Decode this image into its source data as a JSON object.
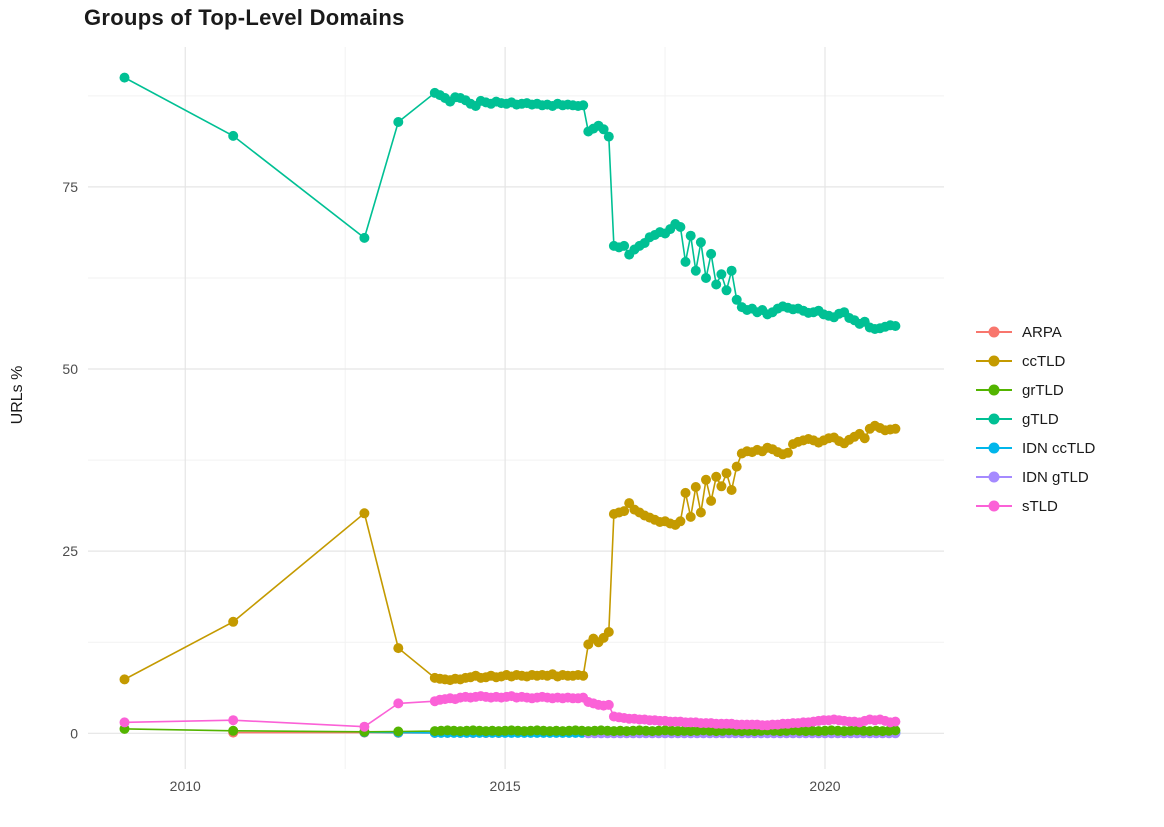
{
  "title": "Groups of Top-Level Domains",
  "chart_data": {
    "type": "scatter",
    "title": "Groups of Top-Level Domains",
    "xlabel": "",
    "ylabel": "URLs %",
    "xlim": [
      2008.48,
      2021.86
    ],
    "ylim": [
      -4.9,
      94.2
    ],
    "grid": true,
    "legend_position": "right",
    "x_ticks": [
      {
        "label": "2010",
        "value": 2010
      },
      {
        "label": "2015",
        "value": 2015
      },
      {
        "label": "2020",
        "value": 2020
      }
    ],
    "y_ticks": [
      {
        "label": "0",
        "value": 0
      },
      {
        "label": "25",
        "value": 25
      },
      {
        "label": "50",
        "value": 50
      },
      {
        "label": "75",
        "value": 75
      }
    ],
    "x_minor": [
      2012.5,
      2017.5
    ],
    "y_minor": [
      12.5,
      37.5,
      62.5,
      87.5
    ],
    "series": [
      {
        "name": "ARPA",
        "color": "#F8766D",
        "points": [
          [
            2010.75,
            0.1
          ],
          [
            2012.8,
            0.1
          ],
          [
            2013.33,
            0.06
          ],
          [
            2013.9,
            0.05
          ],
          [
            2014.1,
            0.05
          ],
          [
            2014.3,
            0.05
          ],
          [
            2014.5,
            0.04
          ],
          [
            2014.7,
            0.04
          ],
          [
            2014.9,
            0.04
          ]
        ]
      },
      {
        "name": "ccTLD",
        "color": "#C49A00",
        "points": [
          [
            2009.05,
            7.4
          ],
          [
            2010.75,
            15.3
          ],
          [
            2012.8,
            30.2
          ],
          [
            2013.33,
            11.7
          ]
        ],
        "dense": {
          "x_start": 2013.9,
          "x_step": 0.08,
          "y": [
            7.6,
            7.5,
            7.4,
            7.3,
            7.5,
            7.4,
            7.6,
            7.7,
            7.9,
            7.6,
            7.7,
            7.9,
            7.7,
            7.8,
            8.0,
            7.8,
            8.0,
            7.9,
            7.8,
            8.0,
            7.9,
            8.0,
            7.9,
            8.1,
            7.8,
            8.0,
            7.9,
            7.9,
            8.0,
            7.9,
            12.2,
            13.0,
            12.5,
            13.1,
            13.9,
            30.1,
            30.3,
            30.5,
            31.6,
            30.7,
            30.3,
            29.9,
            29.6,
            29.3,
            29.0,
            29.1,
            28.8,
            28.6,
            29.1,
            33.0,
            29.7,
            33.8,
            30.3,
            34.8,
            31.9,
            35.2,
            33.9,
            35.7,
            33.4,
            36.6,
            38.4,
            38.7,
            38.6,
            38.9,
            38.7,
            39.2,
            39.0,
            38.6,
            38.3,
            38.5,
            39.7,
            40.0,
            40.2,
            40.4,
            40.2,
            39.9,
            40.2,
            40.5,
            40.6,
            40.1,
            39.8,
            40.3,
            40.7,
            41.1,
            40.5,
            41.8,
            42.2,
            41.9,
            41.6,
            41.7,
            41.8
          ]
        }
      },
      {
        "name": "grTLD",
        "color": "#53B400",
        "points": [
          [
            2009.05,
            0.6
          ],
          [
            2010.75,
            0.35
          ],
          [
            2012.8,
            0.2
          ],
          [
            2013.33,
            0.25
          ]
        ],
        "dense": {
          "x_start": 2013.9,
          "x_step": 0.1,
          "y": [
            0.3,
            0.35,
            0.4,
            0.35,
            0.3,
            0.35,
            0.4,
            0.35,
            0.3,
            0.35,
            0.3,
            0.35,
            0.4,
            0.35,
            0.3,
            0.35,
            0.4,
            0.35,
            0.3,
            0.35,
            0.3,
            0.35,
            0.4,
            0.35,
            0.3,
            0.35,
            0.4,
            0.35,
            0.3,
            0.35,
            0.3,
            0.35,
            0.4,
            0.35,
            0.3,
            0.35,
            0.4,
            0.35,
            0.3,
            0.35,
            0.3,
            0.35,
            0.4,
            0.35,
            0.3,
            0.35,
            0.4,
            0.35,
            0.3,
            0.35,
            0.3,
            0.35,
            0.4,
            0.35,
            0.3,
            0.35,
            0.4,
            0.35,
            0.3,
            0.35,
            0.3,
            0.35,
            0.4,
            0.35,
            0.3,
            0.35,
            0.4,
            0.35,
            0.3,
            0.35,
            0.3,
            0.35,
            0.4
          ]
        }
      },
      {
        "name": "gTLD",
        "color": "#00C094",
        "points": [
          [
            2009.05,
            90.0
          ],
          [
            2010.75,
            82.0
          ],
          [
            2012.8,
            68.0
          ],
          [
            2013.33,
            83.9
          ]
        ],
        "dense": {
          "x_start": 2013.9,
          "x_step": 0.08,
          "y": [
            87.9,
            87.6,
            87.2,
            86.7,
            87.3,
            87.2,
            86.9,
            86.4,
            86.1,
            86.8,
            86.6,
            86.4,
            86.7,
            86.5,
            86.4,
            86.6,
            86.3,
            86.4,
            86.5,
            86.3,
            86.4,
            86.2,
            86.3,
            86.1,
            86.4,
            86.2,
            86.3,
            86.2,
            86.1,
            86.2,
            82.6,
            83.0,
            83.4,
            82.9,
            81.9,
            66.9,
            66.7,
            66.9,
            65.7,
            66.4,
            66.9,
            67.3,
            68.1,
            68.4,
            68.8,
            68.6,
            69.2,
            69.9,
            69.5,
            64.7,
            68.3,
            63.5,
            67.4,
            62.5,
            65.8,
            61.6,
            63.0,
            60.8,
            63.5,
            59.5,
            58.5,
            58.1,
            58.3,
            57.8,
            58.1,
            57.5,
            57.8,
            58.3,
            58.6,
            58.4,
            58.2,
            58.3,
            58.0,
            57.7,
            57.8,
            58.0,
            57.5,
            57.3,
            57.1,
            57.6,
            57.8,
            57.0,
            56.7,
            56.2,
            56.5,
            55.7,
            55.5,
            55.6,
            55.8,
            56.0,
            55.9
          ]
        }
      },
      {
        "name": "IDN ccTLD",
        "color": "#00B6EB",
        "points": [
          [
            2012.8,
            0.15
          ],
          [
            2013.33,
            0.1
          ]
        ],
        "dense": {
          "x_start": 2013.9,
          "x_step": 0.1,
          "n": 73,
          "y_const": 0.05
        }
      },
      {
        "name": "IDN gTLD",
        "color": "#A58AFF",
        "points": [],
        "dense": {
          "x_start": 2016.3,
          "x_step": 0.1,
          "n": 49,
          "y_const": 0.0
        }
      },
      {
        "name": "sTLD",
        "color": "#FB61D7",
        "points": [
          [
            2009.05,
            1.5
          ],
          [
            2010.75,
            1.8
          ],
          [
            2012.8,
            0.9
          ],
          [
            2013.33,
            4.1
          ]
        ],
        "dense": {
          "x_start": 2013.9,
          "x_step": 0.08,
          "y": [
            4.4,
            4.6,
            4.7,
            4.8,
            4.7,
            4.9,
            5.0,
            4.9,
            5.0,
            5.1,
            5.0,
            4.9,
            5.0,
            4.9,
            5.0,
            5.1,
            4.9,
            5.0,
            4.9,
            4.8,
            4.9,
            5.0,
            4.9,
            4.8,
            4.9,
            4.8,
            4.9,
            4.8,
            4.8,
            4.9,
            4.3,
            4.1,
            3.9,
            3.8,
            3.9,
            2.3,
            2.2,
            2.1,
            2.0,
            2.0,
            1.9,
            1.9,
            1.8,
            1.8,
            1.7,
            1.7,
            1.6,
            1.6,
            1.6,
            1.5,
            1.5,
            1.5,
            1.4,
            1.4,
            1.4,
            1.3,
            1.3,
            1.3,
            1.3,
            1.2,
            1.2,
            1.2,
            1.2,
            1.2,
            1.1,
            1.1,
            1.2,
            1.2,
            1.3,
            1.3,
            1.4,
            1.4,
            1.5,
            1.5,
            1.6,
            1.7,
            1.8,
            1.8,
            1.9,
            1.8,
            1.7,
            1.6,
            1.6,
            1.5,
            1.7,
            1.9,
            1.8,
            1.9,
            1.7,
            1.5,
            1.6
          ]
        }
      }
    ]
  }
}
